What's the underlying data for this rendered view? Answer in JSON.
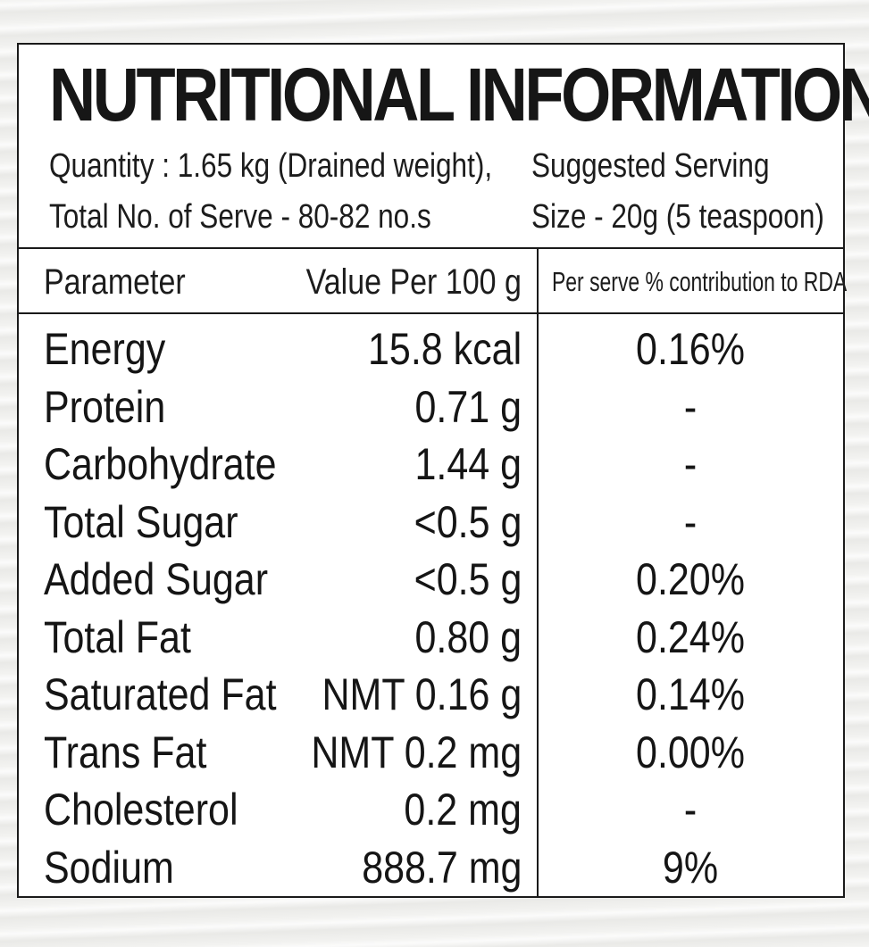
{
  "panel": {
    "title": "NUTRITIONAL INFORMATION*",
    "quantity_line1": "Quantity : 1.65 kg (Drained weight),",
    "quantity_line2": "Total No. of Serve - 80-82 no.s",
    "serving_line1": "Suggested Serving",
    "serving_line2": "Size - 20g (5 teaspoon)"
  },
  "table": {
    "headers": {
      "parameter": "Parameter",
      "value": "Value Per 100 g",
      "rda": "Per serve % contribution to RDA"
    },
    "rows": [
      {
        "parameter": "Energy",
        "value": "15.8 kcal",
        "rda": "0.16%"
      },
      {
        "parameter": "Protein",
        "value": "0.71 g",
        "rda": "-"
      },
      {
        "parameter": "Carbohydrate",
        "value": "1.44 g",
        "rda": "-"
      },
      {
        "parameter": "Total Sugar",
        "value": "<0.5 g",
        "rda": "-"
      },
      {
        "parameter": "Added Sugar",
        "value": "<0.5 g",
        "rda": "0.20%"
      },
      {
        "parameter": "Total Fat",
        "value": "0.80 g",
        "rda": "0.24%"
      },
      {
        "parameter": "Saturated Fat",
        "value": "NMT 0.16 g",
        "rda": "0.14%"
      },
      {
        "parameter": "Trans Fat",
        "value": "NMT 0.2 mg",
        "rda": "0.00%"
      },
      {
        "parameter": "Cholesterol",
        "value": "0.2 mg",
        "rda": "-"
      },
      {
        "parameter": "Sodium",
        "value": "888.7 mg",
        "rda": "9%"
      }
    ]
  },
  "colors": {
    "ink": "#1a1a1a",
    "panel_background": "#ffffff",
    "page_background": "#f2f2f0"
  }
}
